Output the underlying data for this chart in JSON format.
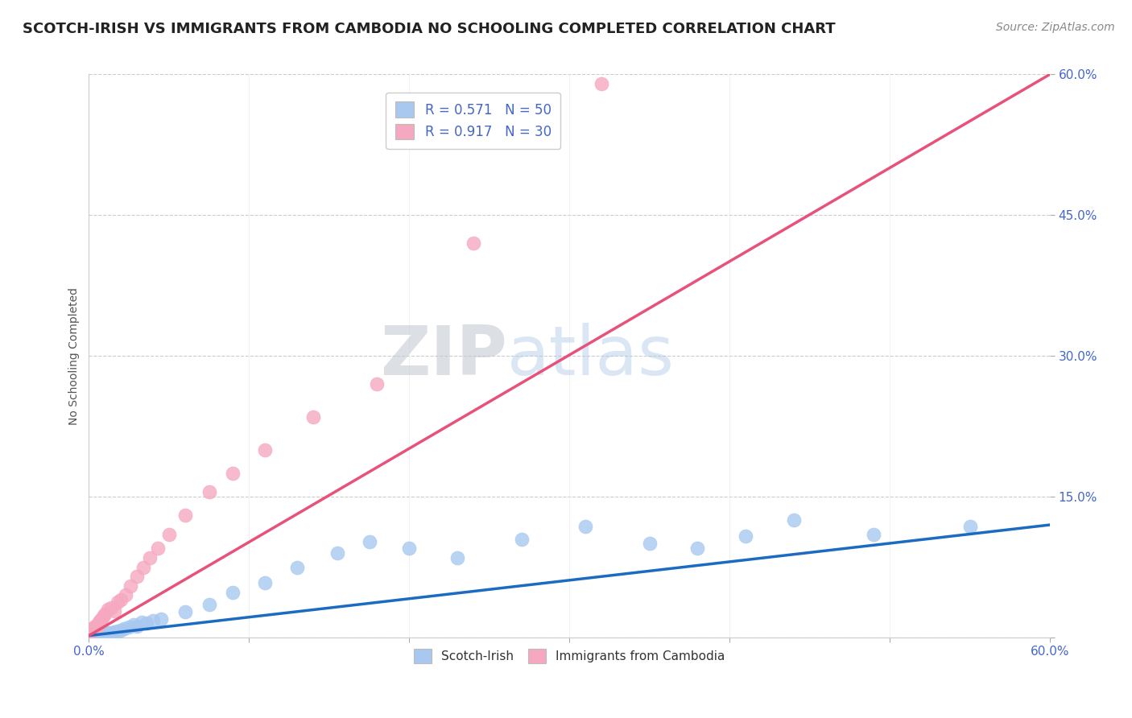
{
  "title": "SCOTCH-IRISH VS IMMIGRANTS FROM CAMBODIA NO SCHOOLING COMPLETED CORRELATION CHART",
  "source": "Source: ZipAtlas.com",
  "ylabel": "No Schooling Completed",
  "xlim": [
    0.0,
    0.6
  ],
  "ylim": [
    0.0,
    0.6
  ],
  "yticks": [
    0.0,
    0.15,
    0.3,
    0.45,
    0.6
  ],
  "xtick_labels_show": [
    "0.0%",
    "60.0%"
  ],
  "ytick_labels": [
    "",
    "15.0%",
    "30.0%",
    "45.0%",
    "60.0%"
  ],
  "background_color": "#ffffff",
  "grid_color": "#cccccc",
  "series": [
    {
      "name": "Scotch-Irish",
      "R": 0.571,
      "N": 50,
      "color_scatter": "#a8c8f0",
      "color_line": "#1a6bc1",
      "scatter_x": [
        0.001,
        0.002,
        0.002,
        0.003,
        0.003,
        0.004,
        0.004,
        0.005,
        0.005,
        0.006,
        0.006,
        0.007,
        0.007,
        0.008,
        0.008,
        0.009,
        0.01,
        0.011,
        0.012,
        0.013,
        0.014,
        0.015,
        0.016,
        0.018,
        0.02,
        0.022,
        0.025,
        0.028,
        0.03,
        0.033,
        0.036,
        0.04,
        0.045,
        0.06,
        0.075,
        0.09,
        0.11,
        0.13,
        0.155,
        0.175,
        0.2,
        0.23,
        0.27,
        0.31,
        0.35,
        0.38,
        0.41,
        0.44,
        0.49,
        0.55
      ],
      "scatter_y": [
        0.001,
        0.001,
        0.002,
        0.001,
        0.002,
        0.002,
        0.003,
        0.002,
        0.001,
        0.002,
        0.003,
        0.002,
        0.003,
        0.002,
        0.003,
        0.003,
        0.003,
        0.004,
        0.005,
        0.004,
        0.005,
        0.005,
        0.006,
        0.007,
        0.008,
        0.009,
        0.011,
        0.014,
        0.012,
        0.016,
        0.015,
        0.018,
        0.02,
        0.027,
        0.035,
        0.048,
        0.058,
        0.075,
        0.09,
        0.102,
        0.095,
        0.085,
        0.105,
        0.118,
        0.1,
        0.095,
        0.108,
        0.125,
        0.11,
        0.118
      ],
      "line_x": [
        0.0,
        0.6
      ],
      "line_y": [
        0.002,
        0.12
      ]
    },
    {
      "name": "Immigrants from Cambodia",
      "R": 0.917,
      "N": 30,
      "color_scatter": "#f5a8c0",
      "color_line": "#e8527a",
      "scatter_x": [
        0.001,
        0.002,
        0.003,
        0.004,
        0.005,
        0.006,
        0.007,
        0.008,
        0.009,
        0.01,
        0.012,
        0.014,
        0.016,
        0.018,
        0.02,
        0.023,
        0.026,
        0.03,
        0.034,
        0.038,
        0.043,
        0.05,
        0.06,
        0.075,
        0.09,
        0.11,
        0.14,
        0.18,
        0.24,
        0.32
      ],
      "scatter_y": [
        0.005,
        0.008,
        0.01,
        0.012,
        0.01,
        0.015,
        0.018,
        0.02,
        0.022,
        0.025,
        0.03,
        0.032,
        0.028,
        0.038,
        0.04,
        0.045,
        0.055,
        0.065,
        0.075,
        0.085,
        0.095,
        0.11,
        0.13,
        0.155,
        0.175,
        0.2,
        0.235,
        0.27,
        0.42,
        0.59
      ],
      "line_x": [
        0.0,
        0.6
      ],
      "line_y": [
        0.002,
        0.6
      ]
    }
  ],
  "legend_entries": [
    {
      "label": "R = 0.571   N = 50",
      "color": "#a8c8f0"
    },
    {
      "label": "R = 0.917   N = 30",
      "color": "#f5a8c0"
    }
  ],
  "bottom_legend": [
    {
      "label": "Scotch-Irish",
      "color": "#a8c8f0"
    },
    {
      "label": "Immigrants from Cambodia",
      "color": "#f5a8c0"
    }
  ],
  "title_fontsize": 13,
  "label_fontsize": 10,
  "tick_fontsize": 11,
  "source_fontsize": 10,
  "legend_fontsize": 12,
  "text_color_blue": "#4466cc",
  "text_color_dark": "#222222",
  "text_color_gray": "#888888"
}
